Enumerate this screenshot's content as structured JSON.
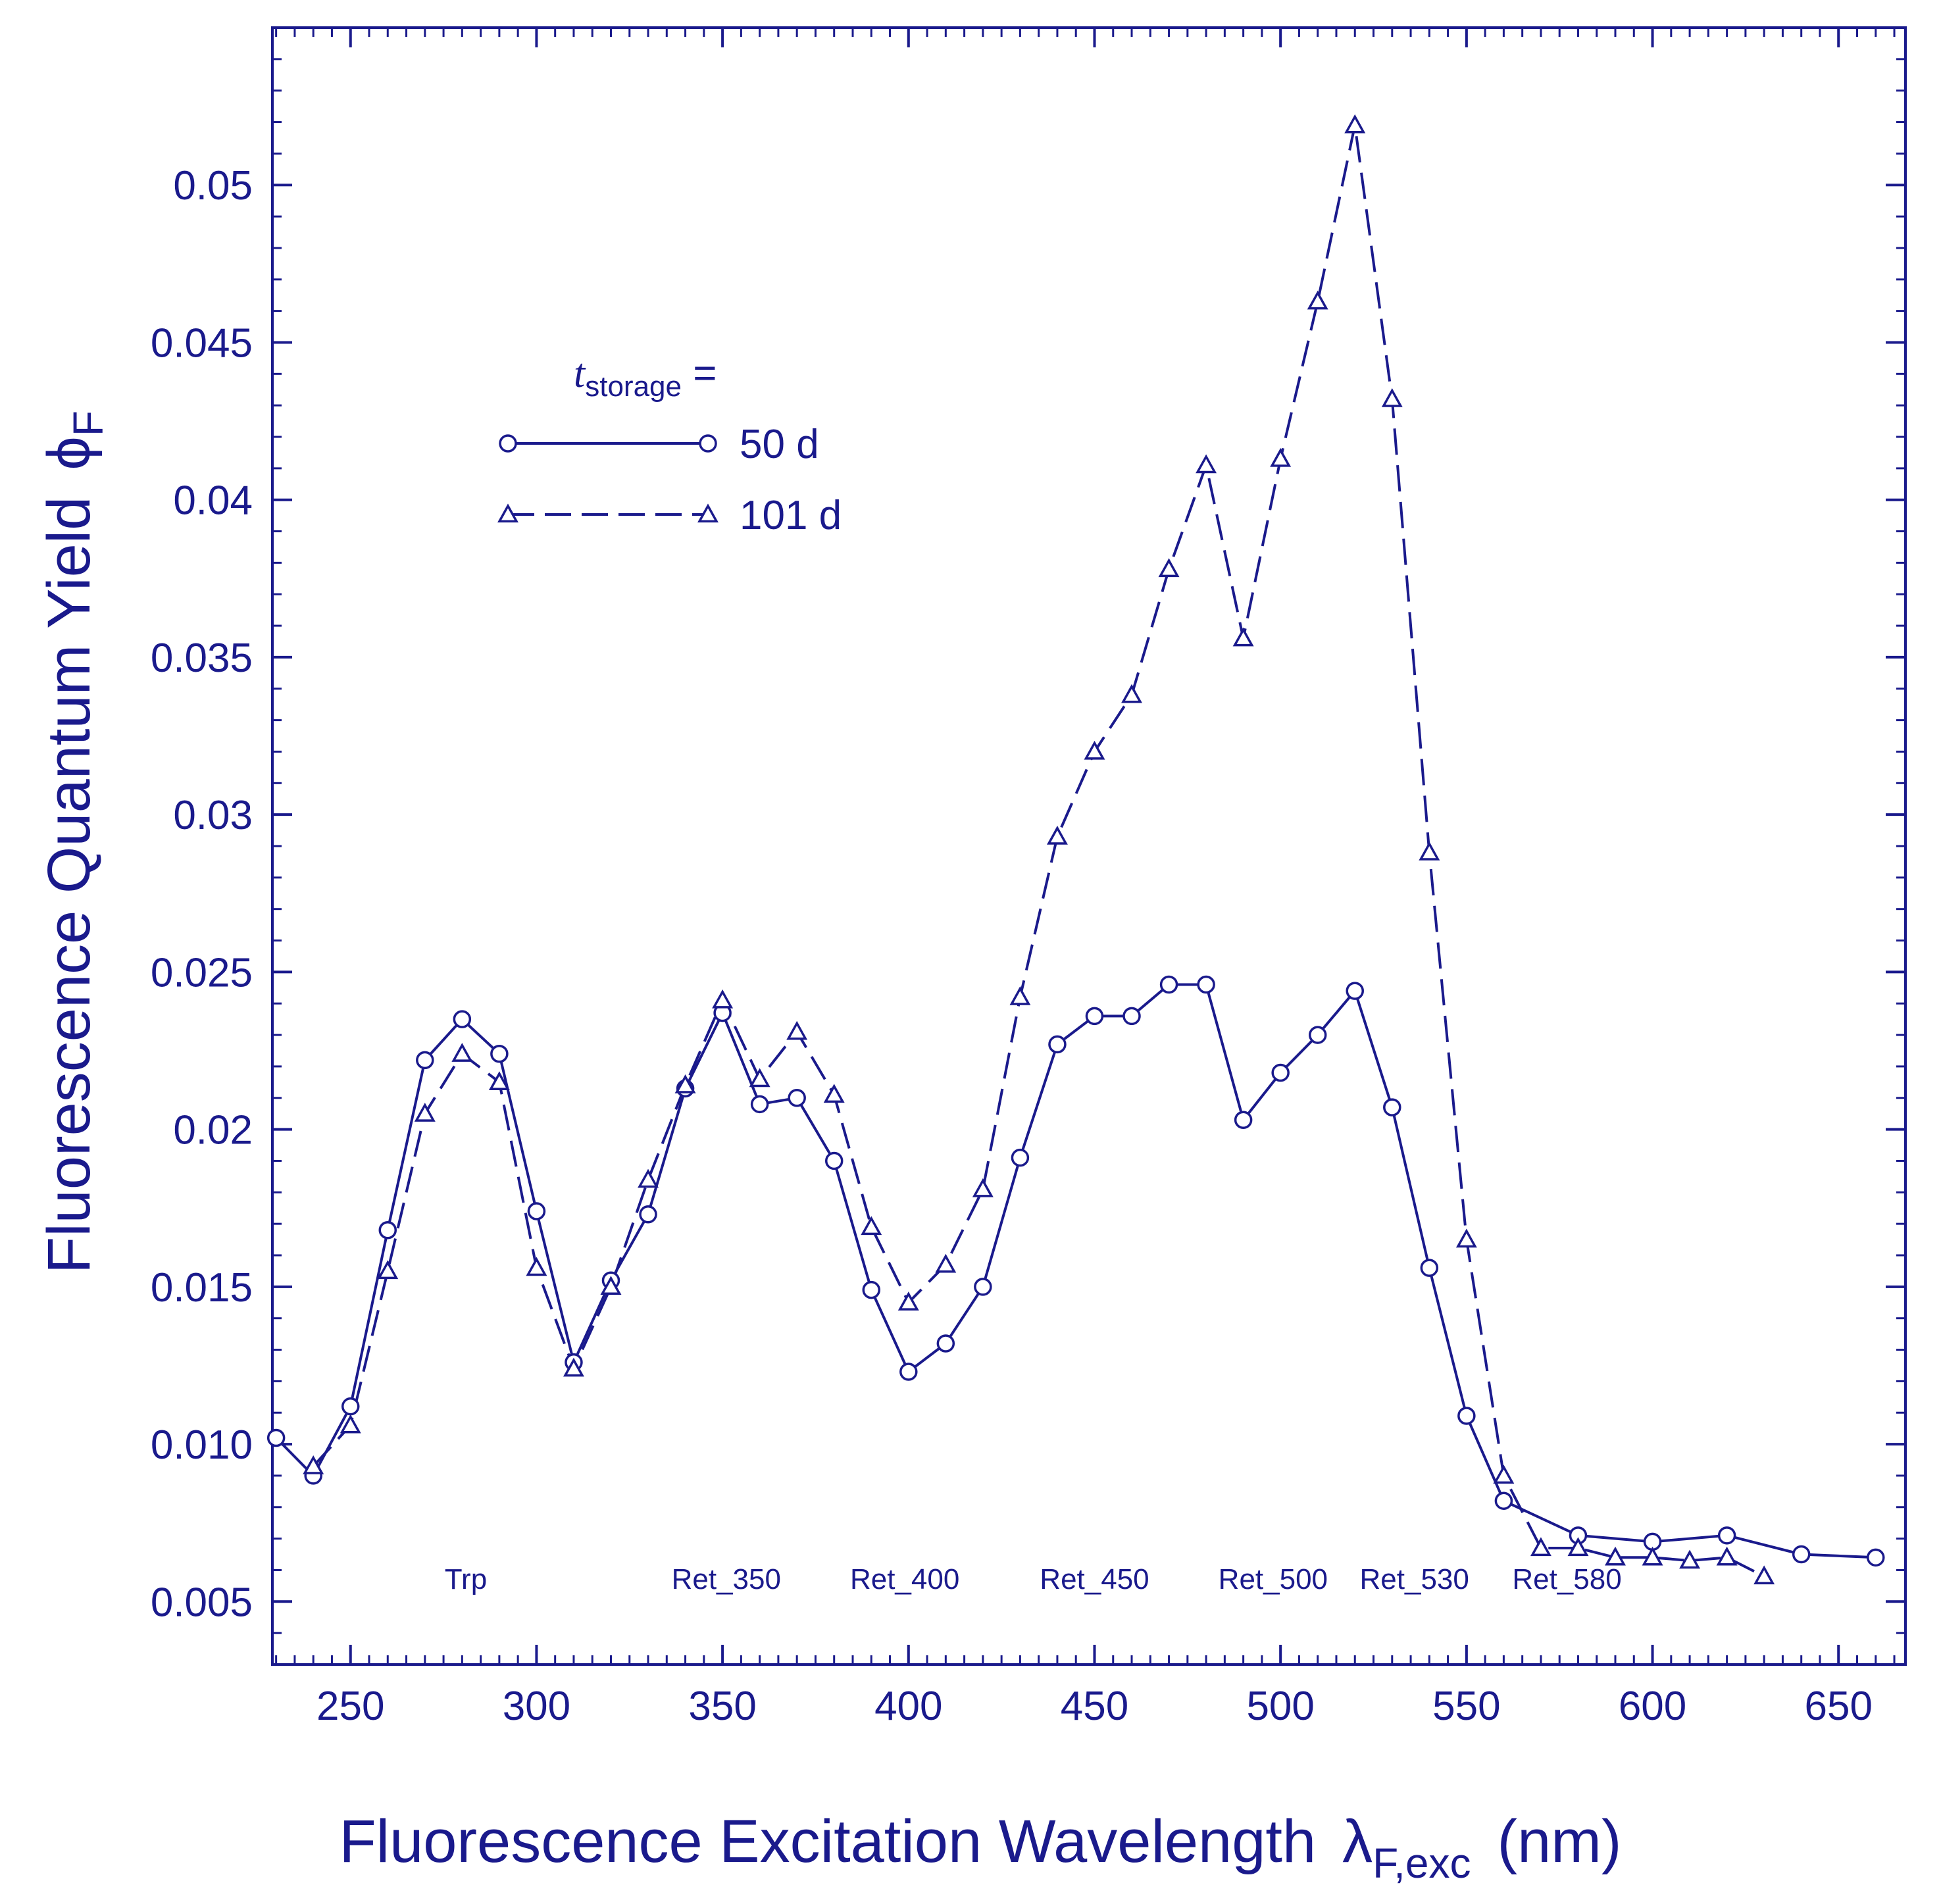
{
  "chart_data": {
    "type": "line",
    "title": "",
    "xlabel": {
      "main": "Fluorescence Excitation Wavelength",
      "symbol": "λ",
      "subscript": "F,exc",
      "unit": "(nm)"
    },
    "ylabel": {
      "main": "Fluorescence Quantum Yield",
      "symbol": "ϕ",
      "subscript": "F"
    },
    "xlim": [
      229,
      668
    ],
    "ylim": [
      0.003,
      0.055
    ],
    "xticks": [
      250,
      300,
      350,
      400,
      450,
      500,
      550,
      600,
      650
    ],
    "xtick_labels": [
      "250",
      "300",
      "350",
      "400",
      "450",
      "500",
      "550",
      "600",
      "650"
    ],
    "yticks": [
      0.005,
      0.01,
      0.015,
      0.02,
      0.025,
      0.03,
      0.035,
      0.04,
      0.045,
      0.05
    ],
    "ytick_labels": [
      "0.005",
      "0.010",
      "0.015",
      "0.02",
      "0.025",
      "0.03",
      "0.035",
      "0.04",
      "0.045",
      "0.05"
    ],
    "grid": false,
    "legend": {
      "placement": "upper-left",
      "title_main": "t",
      "title_sub": "storage",
      "title_suffix": " ="
    },
    "series": [
      {
        "name": "50 d",
        "line": "solid",
        "marker": "circle",
        "color": "#1a1a8c",
        "x": [
          230,
          240,
          250,
          260,
          270,
          280,
          290,
          300,
          310,
          320,
          330,
          340,
          350,
          360,
          370,
          380,
          390,
          400,
          410,
          420,
          430,
          440,
          450,
          460,
          470,
          480,
          490,
          500,
          510,
          520,
          530,
          540,
          550,
          560,
          580,
          600,
          620,
          640,
          660
        ],
        "y": [
          0.0102,
          0.009,
          0.0112,
          0.0168,
          0.0222,
          0.0235,
          0.0224,
          0.0174,
          0.0126,
          0.0152,
          0.0173,
          0.0213,
          0.0237,
          0.0208,
          0.021,
          0.019,
          0.0149,
          0.0123,
          0.0132,
          0.015,
          0.0191,
          0.0227,
          0.0236,
          0.0236,
          0.0246,
          0.0246,
          0.0203,
          0.0218,
          0.023,
          0.0244,
          0.0207,
          0.0156,
          0.0109,
          0.0082,
          0.0071,
          0.0069,
          0.0071,
          0.0065,
          0.0064
        ]
      },
      {
        "name": "101 d",
        "line": "dashed",
        "marker": "triangle",
        "color": "#1a1a8c",
        "x": [
          240,
          250,
          260,
          270,
          280,
          290,
          300,
          310,
          320,
          330,
          340,
          350,
          360,
          370,
          380,
          390,
          400,
          410,
          420,
          430,
          440,
          450,
          460,
          470,
          480,
          490,
          500,
          510,
          520,
          530,
          540,
          550,
          560,
          570,
          580,
          590,
          600,
          610,
          620,
          630
        ],
        "y": [
          0.0093,
          0.0106,
          0.0155,
          0.0205,
          0.0224,
          0.0215,
          0.0156,
          0.0124,
          0.015,
          0.0184,
          0.0214,
          0.0241,
          0.0216,
          0.0231,
          0.0211,
          0.0169,
          0.0145,
          0.0157,
          0.0181,
          0.0242,
          0.0293,
          0.032,
          0.0338,
          0.0378,
          0.0411,
          0.0356,
          0.0413,
          0.0463,
          0.0519,
          0.0432,
          0.0288,
          0.0165,
          0.009,
          0.0067,
          0.0067,
          0.0064,
          0.0064,
          0.0063,
          0.0064,
          0.0058
        ]
      }
    ],
    "annotations": [
      {
        "text": "Trp",
        "x": 281
      },
      {
        "text": "Ret_350",
        "x": 351
      },
      {
        "text": "Ret_400",
        "x": 399
      },
      {
        "text": "Ret_450",
        "x": 450
      },
      {
        "text": "Ret_500",
        "x": 498
      },
      {
        "text": "Ret_530",
        "x": 536
      },
      {
        "text": "Ret_580",
        "x": 577
      }
    ],
    "annotation_y": 0.0054,
    "color": "#1a1a8c"
  }
}
